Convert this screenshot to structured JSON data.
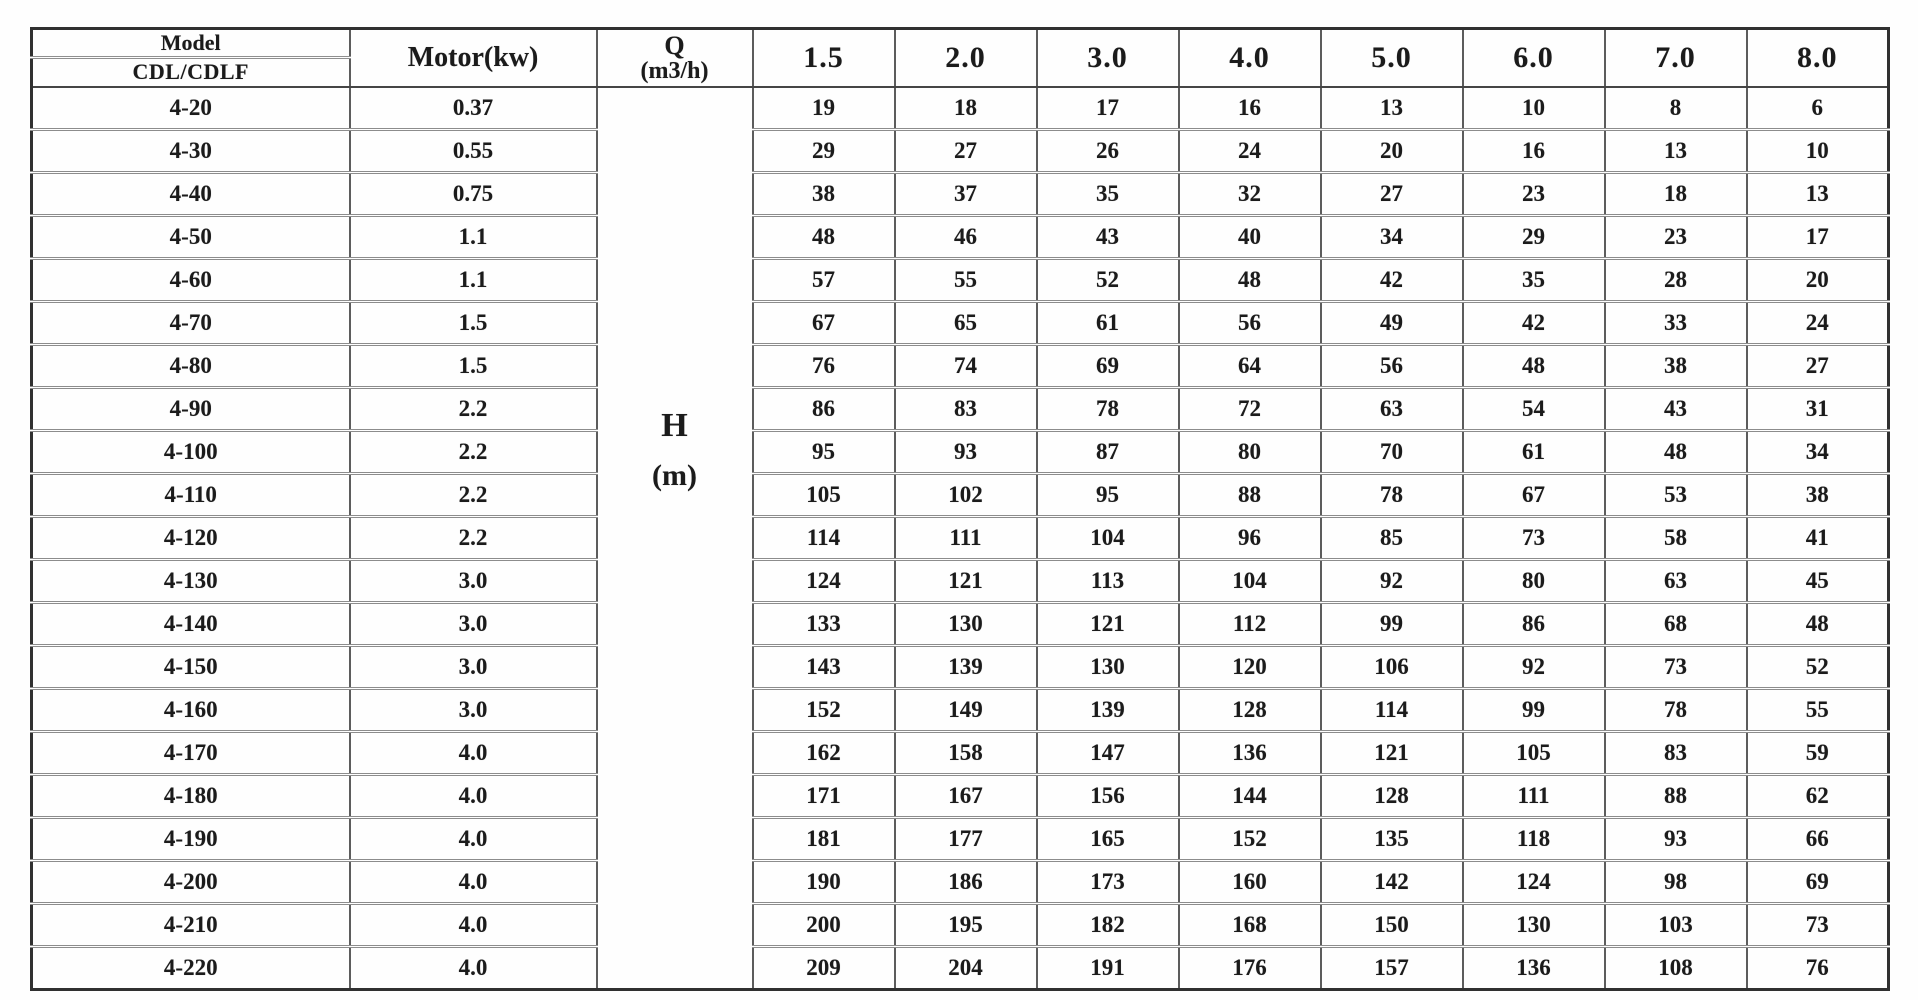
{
  "table": {
    "header": {
      "model_title": "Model",
      "model_subtitle": "CDL/CDLF",
      "motor_label": "Motor(kw)",
      "q_label": "Q",
      "q_unit": "(m3/h)",
      "flow_columns": [
        "1.5",
        "2.0",
        "3.0",
        "4.0",
        "5.0",
        "6.0",
        "7.0",
        "8.0"
      ]
    },
    "head_unit": {
      "line1": "H",
      "line2": "(m)"
    },
    "rows": [
      {
        "model": "4-20",
        "motor": "0.37",
        "heads": [
          "19",
          "18",
          "17",
          "16",
          "13",
          "10",
          "8",
          "6"
        ]
      },
      {
        "model": "4-30",
        "motor": "0.55",
        "heads": [
          "29",
          "27",
          "26",
          "24",
          "20",
          "16",
          "13",
          "10"
        ]
      },
      {
        "model": "4-40",
        "motor": "0.75",
        "heads": [
          "38",
          "37",
          "35",
          "32",
          "27",
          "23",
          "18",
          "13"
        ]
      },
      {
        "model": "4-50",
        "motor": "1.1",
        "heads": [
          "48",
          "46",
          "43",
          "40",
          "34",
          "29",
          "23",
          "17"
        ]
      },
      {
        "model": "4-60",
        "motor": "1.1",
        "heads": [
          "57",
          "55",
          "52",
          "48",
          "42",
          "35",
          "28",
          "20"
        ]
      },
      {
        "model": "4-70",
        "motor": "1.5",
        "heads": [
          "67",
          "65",
          "61",
          "56",
          "49",
          "42",
          "33",
          "24"
        ]
      },
      {
        "model": "4-80",
        "motor": "1.5",
        "heads": [
          "76",
          "74",
          "69",
          "64",
          "56",
          "48",
          "38",
          "27"
        ]
      },
      {
        "model": "4-90",
        "motor": "2.2",
        "heads": [
          "86",
          "83",
          "78",
          "72",
          "63",
          "54",
          "43",
          "31"
        ]
      },
      {
        "model": "4-100",
        "motor": "2.2",
        "heads": [
          "95",
          "93",
          "87",
          "80",
          "70",
          "61",
          "48",
          "34"
        ]
      },
      {
        "model": "4-110",
        "motor": "2.2",
        "heads": [
          "105",
          "102",
          "95",
          "88",
          "78",
          "67",
          "53",
          "38"
        ]
      },
      {
        "model": "4-120",
        "motor": "2.2",
        "heads": [
          "114",
          "111",
          "104",
          "96",
          "85",
          "73",
          "58",
          "41"
        ]
      },
      {
        "model": "4-130",
        "motor": "3.0",
        "heads": [
          "124",
          "121",
          "113",
          "104",
          "92",
          "80",
          "63",
          "45"
        ]
      },
      {
        "model": "4-140",
        "motor": "3.0",
        "heads": [
          "133",
          "130",
          "121",
          "112",
          "99",
          "86",
          "68",
          "48"
        ]
      },
      {
        "model": "4-150",
        "motor": "3.0",
        "heads": [
          "143",
          "139",
          "130",
          "120",
          "106",
          "92",
          "73",
          "52"
        ]
      },
      {
        "model": "4-160",
        "motor": "3.0",
        "heads": [
          "152",
          "149",
          "139",
          "128",
          "114",
          "99",
          "78",
          "55"
        ]
      },
      {
        "model": "4-170",
        "motor": "4.0",
        "heads": [
          "162",
          "158",
          "147",
          "136",
          "121",
          "105",
          "83",
          "59"
        ]
      },
      {
        "model": "4-180",
        "motor": "4.0",
        "heads": [
          "171",
          "167",
          "156",
          "144",
          "128",
          "111",
          "88",
          "62"
        ]
      },
      {
        "model": "4-190",
        "motor": "4.0",
        "heads": [
          "181",
          "177",
          "165",
          "152",
          "135",
          "118",
          "93",
          "66"
        ]
      },
      {
        "model": "4-200",
        "motor": "4.0",
        "heads": [
          "190",
          "186",
          "173",
          "160",
          "142",
          "124",
          "98",
          "69"
        ]
      },
      {
        "model": "4-210",
        "motor": "4.0",
        "heads": [
          "200",
          "195",
          "182",
          "168",
          "150",
          "130",
          "103",
          "73"
        ]
      },
      {
        "model": "4-220",
        "motor": "4.0",
        "heads": [
          "209",
          "204",
          "191",
          "176",
          "157",
          "136",
          "108",
          "76"
        ]
      }
    ]
  }
}
